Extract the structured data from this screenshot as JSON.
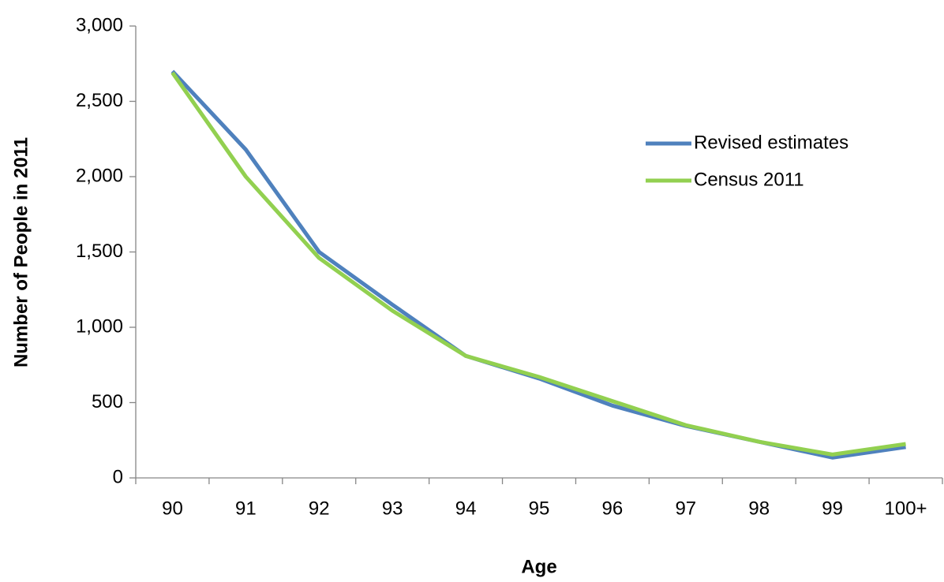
{
  "chart_data": {
    "type": "line",
    "x_label": "Age",
    "y_label": "Number of People in 2011",
    "categories": [
      "90",
      "91",
      "92",
      "93",
      "94",
      "95",
      "96",
      "97",
      "98",
      "99",
      "100+"
    ],
    "series": [
      {
        "name": "Revised estimates",
        "color": "#4f81bd",
        "values": [
          2700,
          2180,
          1500,
          1150,
          810,
          660,
          480,
          345,
          240,
          135,
          205
        ]
      },
      {
        "name": "Census 2011",
        "color": "#92d050",
        "values": [
          2690,
          2000,
          1460,
          1110,
          810,
          670,
          510,
          350,
          240,
          155,
          225
        ]
      }
    ],
    "ylim": [
      0,
      3000
    ],
    "yticks": [
      0,
      500,
      {
        "value": 1000,
        "label": "1,000"
      },
      {
        "value": 1500,
        "label": "1,500"
      },
      {
        "value": 2000,
        "label": "2,000"
      },
      {
        "value": 2500,
        "label": "2,500"
      },
      {
        "value": 3000,
        "label": "3,000"
      }
    ],
    "grid": false,
    "legend": "right"
  }
}
